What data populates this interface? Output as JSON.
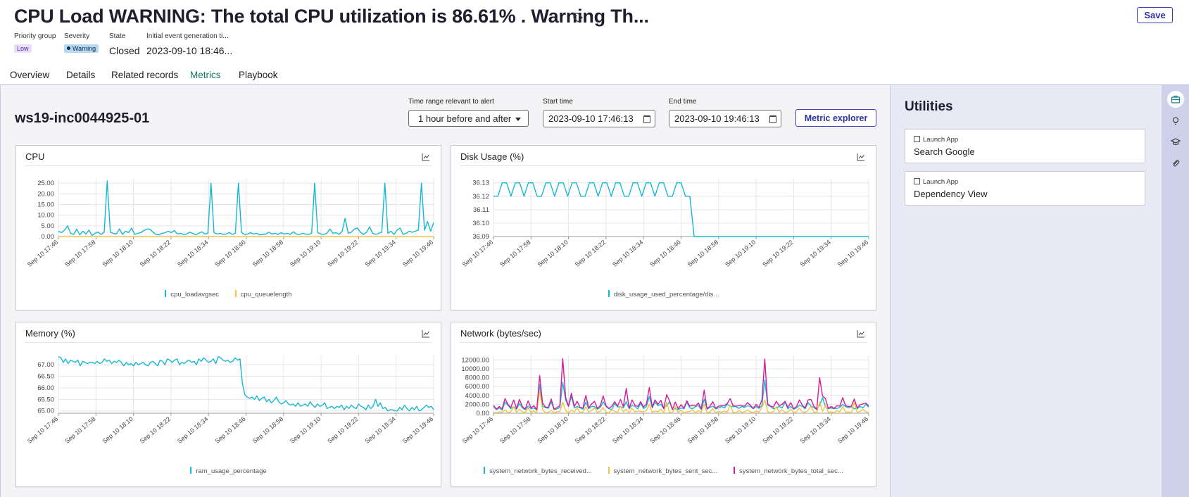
{
  "header": {
    "title": "CPU Load WARNING: The total CPU utilization is 86.61% . Warning Th...",
    "save_label": "Save",
    "fields": {
      "priority_group": {
        "label": "Priority group",
        "value": "Low"
      },
      "severity": {
        "label": "Severity",
        "value": "Warning"
      },
      "state": {
        "label": "State",
        "value": "Closed"
      },
      "initial_event": {
        "label": "Initial event generation ti...",
        "value": "2023-09-10 18:46..."
      }
    }
  },
  "tabs": [
    {
      "label": "Overview"
    },
    {
      "label": "Details"
    },
    {
      "label": "Related records"
    },
    {
      "label": "Metrics",
      "active": true
    },
    {
      "label": "Playbook"
    }
  ],
  "metrics": {
    "host": "ws19-inc0044925-01",
    "time_range_label": "Time range relevant to alert",
    "time_range_value": "1 hour before and after",
    "start_label": "Start time",
    "start_value": "2023-09-10 17:46:13",
    "end_label": "End time",
    "end_value": "2023-09-10 19:46:13",
    "explorer_label": "Metric explorer"
  },
  "colors": {
    "cyan": "#14b8d4",
    "orange": "#f5c342",
    "magenta": "#d41c9b",
    "accent": "#2f33a6",
    "active_tab": "#117a6a"
  },
  "x_ticks": [
    "Sep 10 17:46",
    "Sep 10 17:58",
    "Sep 10 18:10",
    "Sep 10 18:22",
    "Sep 10 18:34",
    "Sep 10 18:46",
    "Sep 10 18:58",
    "Sep 10 19:10",
    "Sep 10 19:22",
    "Sep 10 19:34",
    "Sep 10 19:46"
  ],
  "chart_data": [
    {
      "id": "cpu",
      "type": "line",
      "title": "CPU",
      "y_ticks": [
        "0.00",
        "5.00",
        "10.00",
        "15.00",
        "20.00",
        "25.00"
      ],
      "ylim": [
        0,
        27
      ],
      "series": [
        {
          "name": "cpu_loadavgsec",
          "color": "#14b8d4",
          "values": [
            2.5,
            1.8,
            3.0,
            5.0,
            1.5,
            1.0,
            3.5,
            0.8,
            2.5,
            1.2,
            3.0,
            0.5,
            1.5,
            2.0,
            1.0,
            2.0,
            26.0,
            2.0,
            1.5,
            1.2,
            3.5,
            1.0,
            2.5,
            1.8,
            4.0,
            1.0,
            1.5,
            1.8,
            2.8,
            3.5,
            3.5,
            2.0,
            1.0,
            0.8,
            1.5,
            1.8,
            2.5,
            1.8,
            2.8,
            1.2,
            1.5,
            1.0,
            1.2,
            2.0,
            1.5,
            0.8,
            1.5,
            2.2,
            1.2,
            1.5,
            25.0,
            1.8,
            1.2,
            1.5,
            1.0,
            1.2,
            1.8,
            1.0,
            1.5,
            25.0,
            2.0,
            1.0,
            1.2,
            1.8,
            1.2,
            1.5,
            0.8,
            1.0,
            1.2,
            2.0,
            1.2,
            1.5,
            1.0,
            1.8,
            1.2,
            1.5,
            1.0,
            2.2,
            1.2,
            1.0,
            1.5,
            1.2,
            1.0,
            1.5,
            25.0,
            1.8,
            1.2,
            1.0,
            1.5,
            3.5,
            1.5,
            1.8,
            1.0,
            2.5,
            8.5,
            1.5,
            2.0,
            3.5,
            4.0,
            2.0,
            1.0,
            2.0,
            4.5,
            1.5,
            1.0,
            1.5,
            2.0,
            25.0,
            1.5,
            2.5,
            1.0,
            3.0,
            4.0,
            1.0,
            1.5,
            2.5,
            2.0,
            2.5,
            3.0,
            25.0,
            3.0,
            7.0,
            2.5,
            6.5
          ]
        },
        {
          "name": "cpu_queuelength",
          "color": "#f5c342",
          "values": [
            0,
            0,
            0,
            0,
            0,
            0,
            0,
            0,
            0,
            0,
            0,
            0,
            0,
            0,
            0,
            0,
            0,
            0,
            0,
            0,
            0,
            0,
            0,
            0,
            0,
            0,
            0,
            0,
            0,
            0,
            0,
            0,
            0,
            0,
            0,
            0,
            0,
            0,
            0,
            0,
            0,
            0,
            0,
            0,
            0,
            0,
            0,
            0,
            0,
            0,
            0,
            0,
            0,
            0,
            0,
            0,
            0,
            0,
            0,
            0,
            0,
            0,
            0,
            0,
            0,
            0,
            0,
            0,
            0,
            0,
            0,
            0,
            0,
            0,
            0,
            0,
            0,
            0,
            0,
            0,
            0,
            0,
            0,
            0,
            0,
            0,
            0,
            0,
            0,
            0,
            0,
            0,
            0,
            0,
            0,
            0,
            0,
            0,
            0,
            0,
            0,
            0,
            0,
            0,
            0,
            0,
            0,
            0,
            0,
            0,
            0,
            0,
            0,
            0,
            0,
            0,
            0,
            0,
            0,
            0,
            0,
            0,
            0,
            0
          ]
        }
      ]
    },
    {
      "id": "disk",
      "type": "line",
      "title": "Disk Usage (%)",
      "y_ticks": [
        "36.09",
        "36.10",
        "36.11",
        "36.12",
        "36.13"
      ],
      "ylim": [
        36.09,
        36.133
      ],
      "series": [
        {
          "name": "disk_usage_used_percentage/dis...",
          "color": "#14b8d4",
          "values": [
            36.12,
            36.12,
            36.13,
            36.13,
            36.12,
            36.13,
            36.13,
            36.12,
            36.13,
            36.13,
            36.12,
            36.12,
            36.13,
            36.13,
            36.12,
            36.13,
            36.13,
            36.12,
            36.13,
            36.13,
            36.12,
            36.12,
            36.13,
            36.13,
            36.12,
            36.13,
            36.13,
            36.12,
            36.13,
            36.13,
            36.12,
            36.12,
            36.13,
            36.13,
            36.12,
            36.13,
            36.13,
            36.12,
            36.13,
            36.13,
            36.12,
            36.12,
            36.13,
            36.13,
            36.12,
            36.12,
            36.09,
            36.09,
            36.09,
            36.09,
            36.09,
            36.09,
            36.09,
            36.09,
            36.09,
            36.09,
            36.09,
            36.09,
            36.09,
            36.09,
            36.09,
            36.09,
            36.09,
            36.09,
            36.09,
            36.09,
            36.09,
            36.09,
            36.09,
            36.09,
            36.09,
            36.09,
            36.09,
            36.09,
            36.09,
            36.09,
            36.09,
            36.09,
            36.09,
            36.09,
            36.09,
            36.09,
            36.09,
            36.09,
            36.09,
            36.09,
            36.09
          ]
        }
      ]
    },
    {
      "id": "memory",
      "type": "line",
      "title": "Memory (%)",
      "y_ticks": [
        "65.00",
        "65.50",
        "66.00",
        "66.50",
        "67.00"
      ],
      "ylim": [
        64.9,
        67.4
      ],
      "series": [
        {
          "name": "ram_usage_percentage",
          "color": "#14b8d4",
          "values": [
            67.35,
            67.3,
            67.1,
            67.25,
            67.05,
            67.2,
            67.15,
            67.1,
            67.2,
            66.95,
            67.15,
            67.1,
            67.05,
            67.1,
            67.1,
            67.05,
            67.15,
            67.05,
            67.1,
            67.25,
            67.15,
            67.2,
            67.05,
            67.15,
            67.1,
            67.2,
            67.1,
            66.95,
            67.1,
            67.0,
            67.05,
            66.95,
            67.1,
            67.0,
            67.05,
            67.1,
            67.0,
            66.95,
            67.1,
            67.15,
            67.05,
            66.95,
            67.2,
            67.15,
            67.0,
            67.25,
            67.2,
            67.1,
            67.2,
            67.25,
            67.0,
            67.1,
            67.05,
            67.15,
            67.2,
            67.1,
            67.15,
            67.0,
            67.25,
            67.15,
            67.3,
            67.2,
            67.1,
            67.15,
            67.25,
            67.05,
            67.35,
            67.3,
            67.2,
            67.15,
            67.2,
            67.1,
            67.15,
            67.3,
            67.2,
            67.25,
            66.2,
            65.7,
            65.6,
            65.55,
            65.6,
            65.5,
            65.65,
            65.45,
            65.55,
            65.6,
            65.4,
            65.5,
            65.35,
            65.45,
            65.6,
            65.4,
            65.3,
            65.35,
            65.45,
            65.3,
            65.25,
            65.3,
            65.2,
            65.35,
            65.2,
            65.25,
            65.3,
            65.2,
            65.4,
            65.25,
            65.15,
            65.3,
            65.2,
            65.25,
            65.35,
            65.1,
            65.15,
            65.2,
            65.1,
            65.2,
            65.15,
            65.25,
            65.05,
            65.2,
            65.1,
            65.25,
            65.15,
            65.1,
            65.3,
            65.2,
            65.15,
            65.05,
            65.25,
            65.1,
            65.2,
            65.5,
            65.2,
            65.35,
            65.1,
            65.15,
            65.0,
            65.05,
            65.05,
            65.0,
            65.0,
            65.15,
            65.05,
            65.25,
            65.1,
            65.0,
            65.15,
            65.05,
            65.2,
            65.0,
            65.05,
            65.15,
            65.25,
            65.15,
            65.2,
            65.05
          ]
        }
      ]
    },
    {
      "id": "network",
      "type": "line",
      "title": "Network (bytes/sec)",
      "y_ticks": [
        "0.00",
        "2000.00",
        "4000.00",
        "6000.00",
        "8000.00",
        "10000.00",
        "12000.00"
      ],
      "ylim": [
        0,
        13000
      ],
      "series": [
        {
          "name": "system_network_bytes_received...",
          "color": "#14b8d4",
          "values": [
            1500,
            800,
            1200,
            700,
            2500,
            1800,
            1000,
            1500,
            900,
            2200,
            1200,
            800,
            1600,
            1000,
            1200,
            700,
            6500,
            1500,
            1300,
            1100,
            2600,
            800,
            1000,
            1300,
            7000,
            3000,
            1500,
            3800,
            1200,
            1500,
            1200,
            900,
            2500,
            1000,
            1500,
            1500,
            900,
            1300,
            2600,
            1500,
            1000,
            800,
            2200,
            1400,
            1500,
            1200,
            2600,
            1000,
            1800,
            1500,
            1000,
            2200,
            1100,
            1500,
            3800,
            1200,
            2500,
            1700,
            2000,
            1000,
            1700,
            2600,
            800,
            1000,
            800,
            1200,
            1000,
            2500,
            1200,
            1000,
            1500,
            1700,
            800,
            3200,
            900,
            1300,
            1600,
            1000,
            1200,
            1500,
            1200,
            2000,
            1500,
            1500,
            1500,
            1100,
            1500,
            1300,
            1700,
            1500,
            1000,
            1500,
            1100,
            1700,
            7500,
            1800,
            1500,
            1000,
            1200,
            1500,
            1200,
            2500,
            1000,
            1500,
            900,
            1200,
            1800,
            1500,
            1000,
            2400,
            1600,
            1300,
            800,
            1800,
            3500,
            1500,
            1000,
            1200,
            1000,
            1100,
            1300,
            2000,
            1500,
            1200,
            1500,
            1000,
            1000,
            1500,
            1200,
            2000,
            1400
          ]
        },
        {
          "name": "system_network_bytes_sent_sec...",
          "color": "#f5c342",
          "values": [
            200,
            100,
            300,
            200,
            800,
            150,
            300,
            1500,
            200,
            900,
            300,
            100,
            1200,
            200,
            500,
            100,
            5000,
            800,
            100,
            200,
            600,
            100,
            300,
            400,
            2500,
            600,
            100,
            700,
            300,
            1200,
            100,
            300,
            1500,
            200,
            600,
            1200,
            200,
            400,
            1300,
            200,
            100,
            800,
            400,
            200,
            1600,
            300,
            900,
            100,
            1200,
            300,
            500,
            400,
            300,
            600,
            2000,
            200,
            500,
            300,
            900,
            100,
            2500,
            200,
            100,
            1500,
            200,
            700,
            100,
            300,
            400,
            800,
            100,
            600,
            200,
            2000,
            100,
            300,
            1000,
            100,
            400,
            200,
            500,
            200,
            1800,
            200,
            100,
            600,
            200,
            300,
            700,
            300,
            100,
            500,
            200,
            1300,
            3000,
            300,
            100,
            400,
            1500,
            200,
            800,
            200,
            300,
            900,
            100,
            300,
            1200,
            300,
            200,
            600,
            1500,
            300,
            100,
            2500,
            400,
            1800,
            200,
            300,
            100,
            600,
            300,
            1500,
            200,
            300,
            100,
            2500,
            200,
            400,
            900,
            300,
            200
          ]
        },
        {
          "name": "system_network_bytes_total_sec...",
          "color": "#d41c9b",
          "values": [
            1800,
            900,
            1500,
            1000,
            3300,
            2000,
            1300,
            3000,
            1100,
            3100,
            1500,
            900,
            2800,
            1200,
            1700,
            800,
            8500,
            2300,
            1400,
            1300,
            3200,
            900,
            1300,
            1700,
            12300,
            3600,
            1600,
            4500,
            1500,
            2700,
            1300,
            1200,
            4000,
            1200,
            2100,
            2700,
            1100,
            1700,
            3900,
            1700,
            1100,
            1600,
            2600,
            1600,
            3100,
            1500,
            5600,
            1100,
            3000,
            1800,
            1500,
            2600,
            1400,
            2100,
            5800,
            1400,
            3000,
            2000,
            2900,
            1100,
            4200,
            2800,
            900,
            2500,
            1000,
            1900,
            1100,
            2800,
            1600,
            1800,
            1600,
            2300,
            1000,
            5200,
            1000,
            1600,
            2600,
            1100,
            1600,
            1700,
            1700,
            2200,
            3300,
            1700,
            1600,
            1700,
            1700,
            1600,
            2400,
            1800,
            1100,
            2000,
            1300,
            3000,
            12200,
            2100,
            1600,
            1400,
            2700,
            1700,
            2000,
            2700,
            1300,
            2400,
            1000,
            1500,
            3000,
            1800,
            1200,
            3000,
            3100,
            1600,
            900,
            8000,
            3900,
            3300,
            1100,
            1500,
            1100,
            1700,
            1600,
            3500,
            1700,
            1500,
            1600,
            3200,
            1200,
            1900,
            2100,
            2300,
            1600
          ]
        }
      ]
    }
  ],
  "utilities": {
    "title": "Utilities",
    "items": [
      {
        "kind": "Launch App",
        "name": "Search Google"
      },
      {
        "kind": "Launch App",
        "name": "Dependency View"
      }
    ]
  },
  "rail_icons": [
    "briefcase-icon",
    "lightbulb-icon",
    "graduation-cap-icon",
    "paperclip-icon"
  ]
}
